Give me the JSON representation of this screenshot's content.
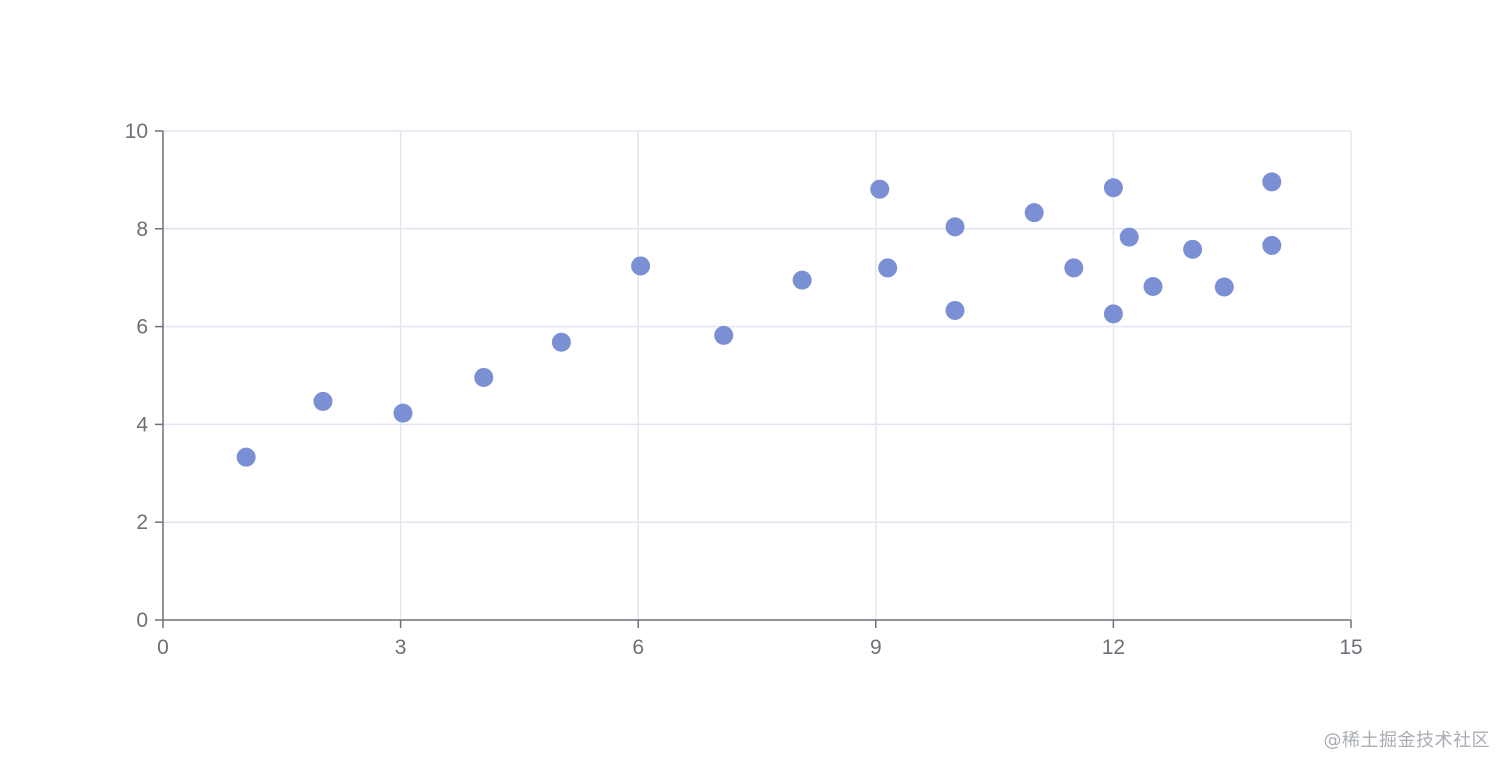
{
  "chart_data": {
    "type": "scatter",
    "title": "",
    "xlabel": "",
    "ylabel": "",
    "xlim": [
      0,
      15
    ],
    "ylim": [
      0,
      10
    ],
    "x_ticks": [
      0,
      3,
      6,
      9,
      12,
      15
    ],
    "y_ticks": [
      0,
      2,
      4,
      6,
      8,
      10
    ],
    "grid": true,
    "legend": false,
    "series": [
      {
        "color": "#7b8fd4",
        "points": [
          [
            1.05,
            3.33
          ],
          [
            2.02,
            4.47
          ],
          [
            3.03,
            4.23
          ],
          [
            4.05,
            4.96
          ],
          [
            5.03,
            5.68
          ],
          [
            6.03,
            7.24
          ],
          [
            7.08,
            5.82
          ],
          [
            8.07,
            6.95
          ],
          [
            9.05,
            8.81
          ],
          [
            9.15,
            7.2
          ],
          [
            10.0,
            8.04
          ],
          [
            10.0,
            6.33
          ],
          [
            11.0,
            8.33
          ],
          [
            11.5,
            7.2
          ],
          [
            12.0,
            8.84
          ],
          [
            12.0,
            6.26
          ],
          [
            12.2,
            7.83
          ],
          [
            12.5,
            6.82
          ],
          [
            13.0,
            7.58
          ],
          [
            13.4,
            6.81
          ],
          [
            14.0,
            8.96
          ],
          [
            14.0,
            7.66
          ]
        ]
      }
    ]
  },
  "watermark": "@稀土掘金技术社区"
}
